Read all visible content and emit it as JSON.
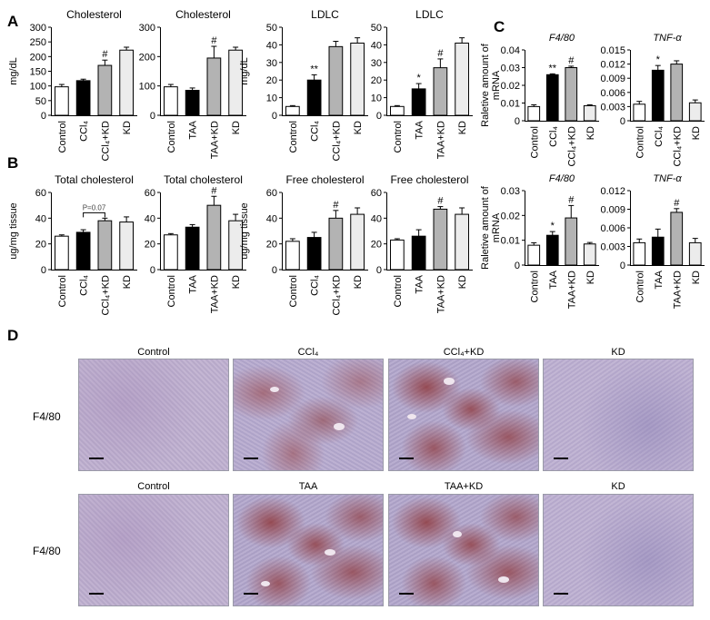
{
  "panels": {
    "a": "A",
    "b": "B",
    "c": "C",
    "d": "D"
  },
  "colors": {
    "control": "#ffffff",
    "treat": "#000000",
    "treat_kd": "#b3b3b3",
    "kd": "#ececec"
  },
  "chart_data": [
    {
      "id": "a1",
      "type": "bar",
      "title": "Cholesterol",
      "ylabel": "mg/dL",
      "ylim": [
        0,
        300
      ],
      "ticks": [
        "0",
        "50",
        "100",
        "150",
        "200",
        "250",
        "300"
      ],
      "categories": [
        "Control",
        "CCl₄",
        "CCl₄+KD",
        "KD"
      ],
      "values": [
        97,
        118,
        170,
        222
      ],
      "errors": [
        8,
        5,
        18,
        10
      ],
      "marks": [
        "",
        "",
        "#",
        ""
      ]
    },
    {
      "id": "a2",
      "type": "bar",
      "title": "Cholesterol",
      "ylabel": "",
      "ylim": [
        0,
        300
      ],
      "ticks": [
        "0",
        "100",
        "200",
        "300"
      ],
      "categories": [
        "Control",
        "TAA",
        "TAA+KD",
        "KD"
      ],
      "values": [
        97,
        85,
        195,
        222
      ],
      "errors": [
        8,
        8,
        40,
        10
      ],
      "marks": [
        "",
        "",
        "#",
        ""
      ]
    },
    {
      "id": "a3",
      "type": "bar",
      "title": "LDLC",
      "ylabel": "mg/dL",
      "ylim": [
        0,
        50
      ],
      "ticks": [
        "0",
        "10",
        "20",
        "30",
        "40",
        "50"
      ],
      "categories": [
        "Control",
        "CCl₄",
        "CCl₄+KD",
        "KD"
      ],
      "values": [
        5,
        20,
        39,
        41
      ],
      "errors": [
        0.5,
        3,
        3,
        3
      ],
      "marks": [
        "",
        "**",
        "",
        ""
      ]
    },
    {
      "id": "a4",
      "type": "bar",
      "title": "LDLC",
      "ylabel": "",
      "ylim": [
        0,
        50
      ],
      "ticks": [
        "0",
        "10",
        "20",
        "30",
        "40",
        "50"
      ],
      "categories": [
        "Control",
        "TAA",
        "TAA+KD",
        "KD"
      ],
      "values": [
        5,
        15,
        27,
        41
      ],
      "errors": [
        0.5,
        3,
        5,
        3
      ],
      "marks": [
        "",
        "*",
        "#",
        ""
      ]
    },
    {
      "id": "b1",
      "type": "bar",
      "title": "Total cholesterol",
      "ylabel": "ug/mg tissue",
      "ylim": [
        0,
        60
      ],
      "ticks": [
        "0",
        "20",
        "40",
        "60"
      ],
      "categories": [
        "Control",
        "CCl₄",
        "CCl₄+KD",
        "KD"
      ],
      "values": [
        26,
        29,
        38,
        37
      ],
      "errors": [
        1,
        2,
        2,
        4
      ],
      "marks": [
        "",
        "",
        "",
        ""
      ],
      "annotation": "P=0.07"
    },
    {
      "id": "b2",
      "type": "bar",
      "title": "Total cholesterol",
      "ylabel": "",
      "ylim": [
        0,
        60
      ],
      "ticks": [
        "0",
        "20",
        "40",
        "60"
      ],
      "categories": [
        "Control",
        "TAA",
        "TAA+KD",
        "KD"
      ],
      "values": [
        27,
        33,
        50,
        38
      ],
      "errors": [
        1,
        2,
        7,
        5
      ],
      "marks": [
        "",
        "",
        "#",
        ""
      ]
    },
    {
      "id": "b3",
      "type": "bar",
      "title": "Free cholesterol",
      "ylabel": "ug/mg tissue",
      "ylim": [
        0,
        60
      ],
      "ticks": [
        "0",
        "20",
        "40",
        "60"
      ],
      "categories": [
        "Control",
        "CCl₄",
        "CCl₄+KD",
        "KD"
      ],
      "values": [
        22,
        25,
        40,
        43
      ],
      "errors": [
        2,
        4,
        6,
        5
      ],
      "marks": [
        "",
        "",
        "#",
        ""
      ]
    },
    {
      "id": "b4",
      "type": "bar",
      "title": "Free cholesterol",
      "ylabel": "",
      "ylim": [
        0,
        60
      ],
      "ticks": [
        "0",
        "20",
        "40",
        "60"
      ],
      "categories": [
        "Control",
        "TAA",
        "TAA+KD",
        "KD"
      ],
      "values": [
        23,
        26,
        47,
        43
      ],
      "errors": [
        1,
        5,
        2,
        5
      ],
      "marks": [
        "",
        "",
        "#",
        ""
      ]
    },
    {
      "id": "c1",
      "type": "bar",
      "title": "F4/80",
      "ylabel": "Raletive amount of mRNA",
      "ylim": [
        0,
        0.04
      ],
      "ticks": [
        "0",
        "0.01",
        "0.02",
        "0.03",
        "0.04"
      ],
      "categories": [
        "Control",
        "CCl₄",
        "CCl₄+KD",
        "KD"
      ],
      "values": [
        0.008,
        0.026,
        0.03,
        0.0085
      ],
      "errors": [
        0.001,
        0.0005,
        0.0008,
        0.0005
      ],
      "marks": [
        "",
        "**",
        "#",
        ""
      ]
    },
    {
      "id": "c2",
      "type": "bar",
      "title": "TNF-α",
      "ylabel": "",
      "ylim": [
        0,
        0.015
      ],
      "ticks": [
        "0",
        "0.003",
        "0.006",
        "0.009",
        "0.012",
        "0.015"
      ],
      "categories": [
        "Control",
        "CCl₄",
        "CCl₄+KD",
        "KD"
      ],
      "values": [
        0.0035,
        0.0107,
        0.012,
        0.0038
      ],
      "errors": [
        0.0006,
        0.001,
        0.0007,
        0.0006
      ],
      "marks": [
        "",
        "*",
        "",
        ""
      ]
    },
    {
      "id": "c3",
      "type": "bar",
      "title": "F4/80",
      "ylabel": "Raletive amount of mRNA",
      "ylim": [
        0,
        0.03
      ],
      "ticks": [
        "0",
        "0.01",
        "0.02",
        "0.03"
      ],
      "categories": [
        "Control",
        "TAA",
        "TAA+KD",
        "KD"
      ],
      "values": [
        0.008,
        0.012,
        0.019,
        0.0085
      ],
      "errors": [
        0.001,
        0.0015,
        0.005,
        0.0006
      ],
      "marks": [
        "",
        "*",
        "#",
        ""
      ]
    },
    {
      "id": "c4",
      "type": "bar",
      "title": "TNF-α",
      "ylabel": "",
      "ylim": [
        0,
        0.012
      ],
      "ticks": [
        "0",
        "0.003",
        "0.006",
        "0.009",
        "0.012"
      ],
      "categories": [
        "Control",
        "TAA",
        "TAA+KD",
        "KD"
      ],
      "values": [
        0.0036,
        0.0045,
        0.0085,
        0.0036
      ],
      "errors": [
        0.0006,
        0.0013,
        0.0006,
        0.0007
      ],
      "marks": [
        "",
        "",
        "#",
        ""
      ]
    }
  ],
  "histology": {
    "row_label": "F4/80",
    "row1": [
      "Control",
      "CCl₄",
      "CCl₄+KD",
      "KD"
    ],
    "row2": [
      "Control",
      "TAA",
      "TAA+KD",
      "KD"
    ]
  }
}
